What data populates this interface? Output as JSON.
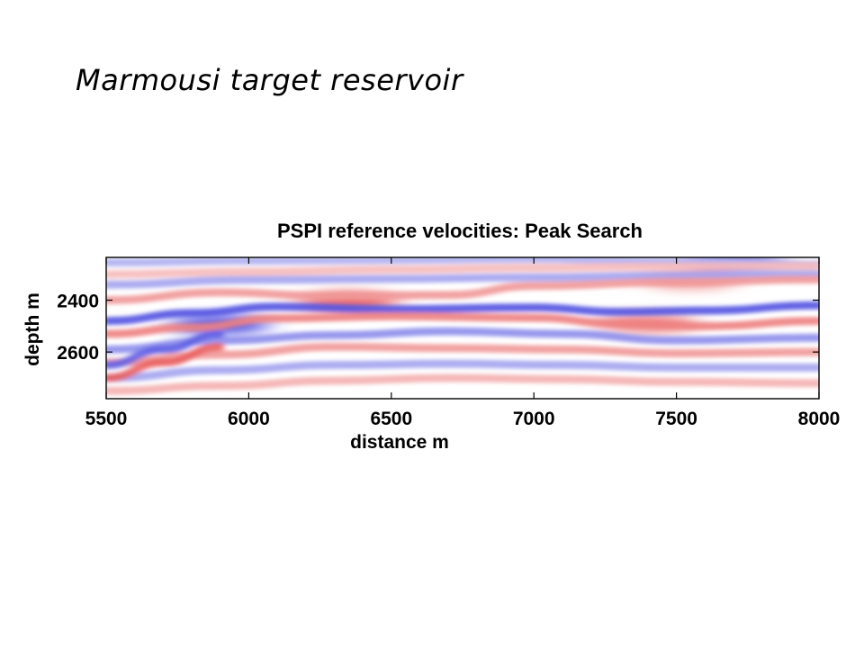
{
  "slide": {
    "title": "Marmousi target reservoir"
  },
  "chart_data": {
    "type": "heatmap",
    "title": "PSPI reference velocities: Peak Search",
    "xlabel": "distance m",
    "ylabel": "depth m",
    "xlim": [
      5500,
      8000
    ],
    "ylim": [
      2780,
      2235
    ],
    "x_ticks": [
      5500,
      6000,
      6500,
      7000,
      7500,
      8000
    ],
    "y_ticks": [
      2400,
      2600
    ],
    "colormap": {
      "negative": "#1a1ad8",
      "zero": "#ffffff",
      "positive": "#e01a1a"
    },
    "value_range": [
      -1,
      1
    ],
    "reflectors": [
      {
        "x": [
          5500,
          6000,
          6500,
          7000,
          7500,
          8000
        ],
        "depth": [
          2255,
          2248,
          2245,
          2240,
          2250,
          2262
        ],
        "value": -0.35
      },
      {
        "x": [
          5500,
          6000,
          6500,
          7000,
          7500,
          8000
        ],
        "depth": [
          2300,
          2290,
          2282,
          2275,
          2270,
          2268
        ],
        "value": 0.3
      },
      {
        "x": [
          5500,
          6000,
          6500,
          7000,
          7500,
          8000
        ],
        "depth": [
          2340,
          2322,
          2318,
          2312,
          2305,
          2300
        ],
        "value": -0.4
      },
      {
        "x": [
          5500,
          5900,
          6300,
          6700,
          7000,
          7500,
          8000
        ],
        "depth": [
          2400,
          2370,
          2385,
          2380,
          2345,
          2330,
          2320
        ],
        "value": 0.45
      },
      {
        "x": [
          5500,
          5800,
          6100,
          6500,
          7000,
          7300,
          7600,
          8000
        ],
        "depth": [
          2480,
          2450,
          2425,
          2435,
          2428,
          2445,
          2440,
          2420
        ],
        "value": -0.75
      },
      {
        "x": [
          5500,
          5800,
          6100,
          6500,
          7000,
          7300,
          7600,
          8000
        ],
        "depth": [
          2530,
          2505,
          2470,
          2462,
          2468,
          2490,
          2500,
          2480
        ],
        "value": 0.55
      },
      {
        "x": [
          5500,
          5900,
          6300,
          6700,
          7100,
          7500,
          8000
        ],
        "depth": [
          2590,
          2555,
          2535,
          2520,
          2530,
          2555,
          2545
        ],
        "value": -0.5
      },
      {
        "x": [
          5500,
          5900,
          6300,
          6700,
          7100,
          7500,
          8000
        ],
        "depth": [
          2640,
          2610,
          2580,
          2585,
          2590,
          2605,
          2600
        ],
        "value": 0.45
      },
      {
        "x": [
          5500,
          5900,
          6300,
          6700,
          7100,
          7500,
          8000
        ],
        "depth": [
          2700,
          2670,
          2650,
          2645,
          2650,
          2660,
          2660
        ],
        "value": -0.4
      },
      {
        "x": [
          5500,
          5900,
          6300,
          6700,
          7100,
          7500,
          8000
        ],
        "depth": [
          2750,
          2730,
          2710,
          2700,
          2705,
          2715,
          2720
        ],
        "value": 0.35
      },
      {
        "x": [
          5500,
          5700,
          5900
        ],
        "depth": [
          2650,
          2590,
          2530
        ],
        "value": -0.7
      },
      {
        "x": [
          5500,
          5700,
          5900
        ],
        "depth": [
          2700,
          2640,
          2580
        ],
        "value": 0.7
      }
    ],
    "anomalies": [
      {
        "x": 6350,
        "depth": 2405,
        "value": 0.8
      },
      {
        "x": 5900,
        "depth": 2495,
        "value": -0.85
      },
      {
        "x": 7400,
        "depth": 2490,
        "value": 0.6
      },
      {
        "x": 7550,
        "depth": 2320,
        "value": 0.5
      },
      {
        "x": 7700,
        "depth": 2255,
        "value": -0.7
      }
    ]
  }
}
